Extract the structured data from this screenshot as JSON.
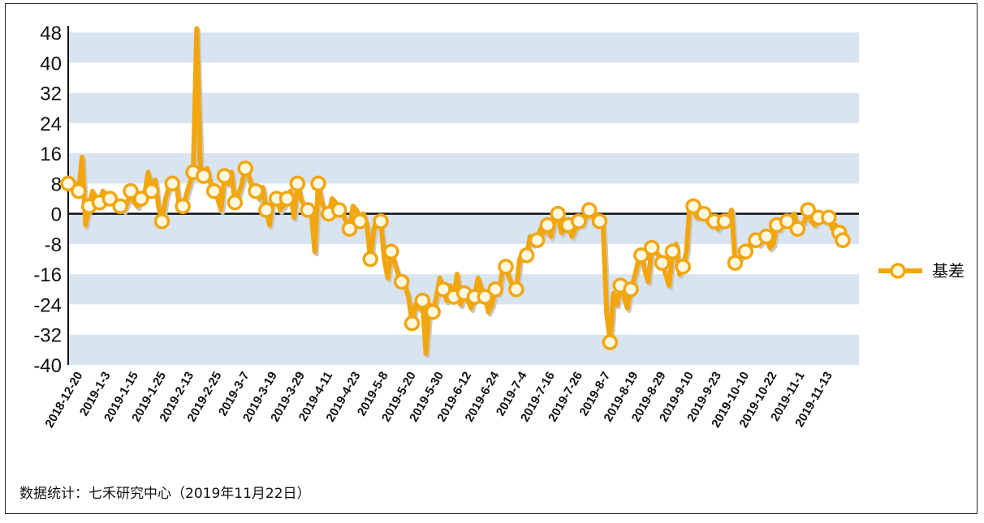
{
  "source_note": "数据统计：七禾研究中心（2019年11月22日）",
  "colors": {
    "series": "#F2A60E",
    "band": "#D9E4F1",
    "axis": "#111111",
    "marker_fill": "#FFF8E0"
  },
  "chart_data": {
    "type": "line",
    "title": "",
    "xlabel": "",
    "ylabel": "",
    "ylim": [
      -40,
      48
    ],
    "yticks": [
      48,
      40,
      32,
      24,
      16,
      8,
      0,
      -8,
      -16,
      -24,
      -32,
      -40
    ],
    "grid": "alternating horizontal bands",
    "legend_position": "right",
    "x_tick_labels": [
      "2018-12-20",
      "2019-1-3",
      "2019-1-15",
      "2019-1-25",
      "2019-2-13",
      "2019-2-25",
      "2019-3-7",
      "2019-3-19",
      "2019-3-29",
      "2019-4-11",
      "2019-4-23",
      "2019-5-8",
      "2019-5-20",
      "2019-5-30",
      "2019-6-12",
      "2019-6-24",
      "2019-7-4",
      "2019-7-16",
      "2019-7-26",
      "2019-8-7",
      "2019-8-19",
      "2019-8-29",
      "2019-9-10",
      "2019-9-23",
      "2019-10-10",
      "2019-10-22",
      "2019-11-1",
      "2019-11-13"
    ],
    "series": [
      {
        "name": "基差",
        "values": [
          8,
          9,
          8,
          6,
          15,
          -3,
          2,
          6,
          4,
          3,
          6,
          5,
          4,
          5,
          2,
          2,
          1,
          3,
          6,
          3,
          2,
          4,
          5,
          11,
          6,
          9,
          2,
          -2,
          4,
          7,
          8,
          9,
          2,
          2,
          5,
          8,
          11,
          49,
          13,
          10,
          12,
          8,
          6,
          4,
          1,
          10,
          8,
          11,
          3,
          5,
          8,
          12,
          10,
          7,
          6,
          4,
          7,
          1,
          -3,
          5,
          4,
          1,
          2,
          4,
          6,
          -1,
          8,
          4,
          2,
          1,
          0,
          -10,
          8,
          3,
          1,
          0,
          4,
          3,
          1,
          0,
          -2,
          -4,
          2,
          1,
          -2,
          0,
          -3,
          -12,
          -4,
          -1,
          -2,
          -12,
          -17,
          -10,
          -13,
          -16,
          -18,
          -19,
          -22,
          -29,
          -24,
          -25,
          -23,
          -37,
          -24,
          -26,
          -22,
          -17,
          -20,
          -23,
          -19,
          -22,
          -16,
          -24,
          -21,
          -23,
          -25,
          -22,
          -17,
          -20,
          -22,
          -26,
          -24,
          -20,
          -21,
          -15,
          -14,
          -17,
          -19,
          -20,
          -12,
          -10,
          -11,
          -6,
          -8,
          -7,
          -4,
          -5,
          -3,
          -6,
          -2,
          0,
          -5,
          -4,
          -3,
          -6,
          -4,
          -2,
          -3,
          -1,
          1,
          -1,
          0,
          -2,
          -3,
          -26,
          -34,
          -21,
          -24,
          -19,
          -22,
          -25,
          -20,
          -17,
          -13,
          -11,
          -15,
          -18,
          -9,
          -10,
          -11,
          -13,
          -16,
          -19,
          -10,
          -8,
          -16,
          -14,
          -10,
          3,
          2,
          -1,
          1,
          0,
          -2,
          -3,
          -2,
          -4,
          -3,
          -2,
          -1,
          1,
          -13,
          -12,
          -11,
          -10,
          -9,
          -6,
          -7,
          -8,
          -7,
          -6,
          -9,
          -8,
          -3,
          -4,
          -1,
          -2,
          -1,
          0,
          -4,
          -3,
          -2,
          1,
          -2,
          -3,
          -1,
          0,
          -2,
          -1,
          -4,
          -3,
          -5,
          -7
        ]
      }
    ]
  }
}
